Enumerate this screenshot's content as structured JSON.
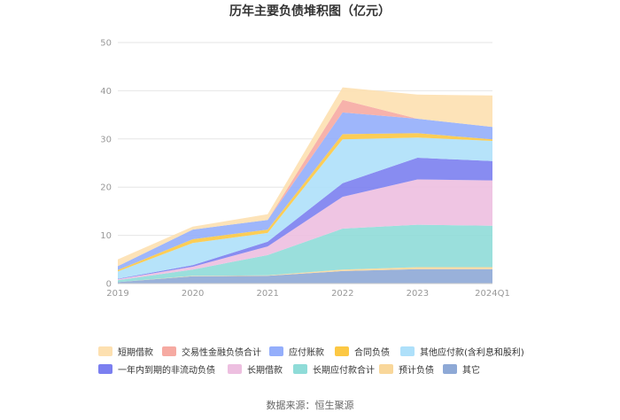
{
  "chart_data": {
    "type": "area",
    "title": "历年主要负债堆积图（亿元）",
    "xlabel": "",
    "ylabel": "",
    "categories": [
      "2019",
      "2020",
      "2021",
      "2022",
      "2023",
      "2024Q1"
    ],
    "ylim": [
      0,
      50
    ],
    "yticks": [
      0,
      10,
      20,
      30,
      40,
      50
    ],
    "stack_order_bottom_to_top": [
      "其它",
      "预计负债",
      "长期应付款合计",
      "长期借款",
      "一年内到期的非流动负债",
      "其他应付款(含利息和股利)",
      "合同负债",
      "应付账款",
      "交易性金融负债合计",
      "短期借款"
    ],
    "series": [
      {
        "name": "其它",
        "color": "#8ea9d6",
        "values": [
          0.3,
          1.5,
          1.6,
          2.6,
          3.0,
          3.0
        ]
      },
      {
        "name": "预计负债",
        "color": "#f9d79a",
        "values": [
          0.0,
          0.1,
          0.1,
          0.3,
          0.4,
          0.4
        ]
      },
      {
        "name": "长期应付款合计",
        "color": "#8fdcd8",
        "values": [
          0.4,
          1.3,
          4.2,
          8.5,
          8.8,
          8.6
        ]
      },
      {
        "name": "长期借款",
        "color": "#edbfe0",
        "values": [
          0.2,
          0.6,
          1.8,
          6.6,
          9.4,
          9.4
        ]
      },
      {
        "name": "一年内到期的非流动负债",
        "color": "#7b7ff0",
        "values": [
          0.1,
          0.3,
          1.0,
          2.8,
          4.5,
          4.0
        ]
      },
      {
        "name": "其他应付款(含利息和股利)",
        "color": "#aee0fa",
        "values": [
          1.5,
          4.6,
          1.8,
          9.1,
          4.2,
          4.2
        ]
      },
      {
        "name": "合同负债",
        "color": "#fcc844",
        "values": [
          0.3,
          0.8,
          0.7,
          1.1,
          0.9,
          0.3
        ]
      },
      {
        "name": "应付账款",
        "color": "#94aefb",
        "values": [
          0.8,
          2.0,
          2.0,
          4.5,
          3.0,
          2.6
        ]
      },
      {
        "name": "交易性金融负债合计",
        "color": "#f6aaa2",
        "values": [
          0.0,
          0.0,
          0.0,
          2.6,
          0.0,
          0.0
        ]
      },
      {
        "name": "短期借款",
        "color": "#fde0b0",
        "values": [
          1.4,
          0.6,
          1.2,
          2.6,
          5.0,
          6.5
        ]
      }
    ],
    "legend_position": "bottom",
    "grid": true
  },
  "legend": [
    {
      "label": "短期借款",
      "color": "#fde0b0"
    },
    {
      "label": "交易性金融负债合计",
      "color": "#f6aaa2"
    },
    {
      "label": "应付账款",
      "color": "#94aefb"
    },
    {
      "label": "合同负债",
      "color": "#fcc844"
    },
    {
      "label": "其他应付款(含利息和股利)",
      "color": "#aee0fa"
    },
    {
      "label": "一年内到期的非流动负债",
      "color": "#7b7ff0"
    },
    {
      "label": "长期借款",
      "color": "#edbfe0"
    },
    {
      "label": "长期应付款合计",
      "color": "#8fdcd8"
    },
    {
      "label": "预计负债",
      "color": "#f9d79a"
    },
    {
      "label": "其它",
      "color": "#8ea9d6"
    }
  ],
  "source": "数据来源：恒生聚源"
}
